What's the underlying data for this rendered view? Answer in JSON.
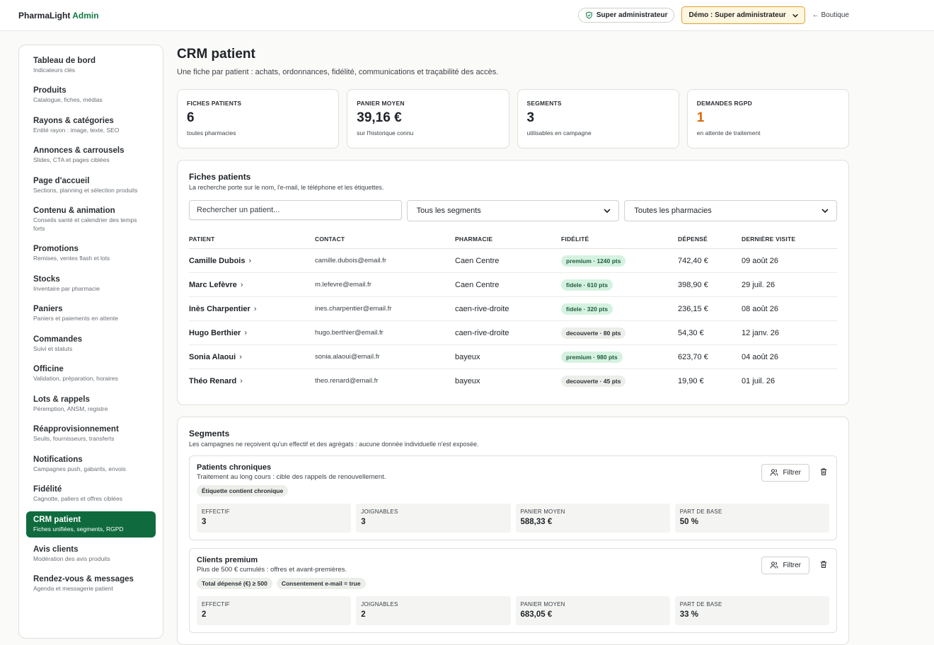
{
  "header": {
    "brand_main": "PharmaLight",
    "brand_accent": "Admin",
    "role_label": "Super administrateur",
    "demo_label": "Démo : Super administrateur",
    "shop_link": "← Boutique"
  },
  "sidebar": {
    "items": [
      {
        "title": "Tableau de bord",
        "sub": "Indicateurs clés"
      },
      {
        "title": "Produits",
        "sub": "Catalogue, fiches, médias"
      },
      {
        "title": "Rayons & catégories",
        "sub": "Entité rayon : image, texte, SEO"
      },
      {
        "title": "Annonces & carrousels",
        "sub": "Slides, CTA et pages ciblées"
      },
      {
        "title": "Page d'accueil",
        "sub": "Sections, planning et sélection produits"
      },
      {
        "title": "Contenu & animation",
        "sub": "Conseils santé et calendrier des temps forts"
      },
      {
        "title": "Promotions",
        "sub": "Remises, ventes flash et lots"
      },
      {
        "title": "Stocks",
        "sub": "Inventaire par pharmacie"
      },
      {
        "title": "Paniers",
        "sub": "Paniers et paiements en attente"
      },
      {
        "title": "Commandes",
        "sub": "Suivi et statuts"
      },
      {
        "title": "Officine",
        "sub": "Validation, préparation, horaires"
      },
      {
        "title": "Lots & rappels",
        "sub": "Péremption, ANSM, registre"
      },
      {
        "title": "Réapprovisionnement",
        "sub": "Seuils, fournisseurs, transferts"
      },
      {
        "title": "Notifications",
        "sub": "Campagnes push, gabarits, envois"
      },
      {
        "title": "Fidélité",
        "sub": "Cagnotte, paliers et offres ciblées"
      },
      {
        "title": "CRM patient",
        "sub": "Fiches unifiées, segments, RGPD"
      },
      {
        "title": "Avis clients",
        "sub": "Modération des avis produits"
      },
      {
        "title": "Rendez-vous & messages",
        "sub": "Agenda et messagerie patient"
      }
    ]
  },
  "page": {
    "title": "CRM patient",
    "subtitle": "Une fiche par patient : achats, ordonnances, fidélité, communications et traçabilité des accès."
  },
  "stats": [
    {
      "label": "FICHES PATIENTS",
      "value": "6",
      "caption": "toutes pharmacies"
    },
    {
      "label": "PANIER MOYEN",
      "value": "39,16 €",
      "caption": "sur l'historique connu"
    },
    {
      "label": "SEGMENTS",
      "value": "3",
      "caption": "utilisables en campagne"
    },
    {
      "label": "DEMANDES RGPD",
      "value": "1",
      "caption": "en attente de traitement"
    }
  ],
  "patients": {
    "title": "Fiches patients",
    "subtitle": "La recherche porte sur le nom, l'e-mail, le téléphone et les étiquettes.",
    "search_placeholder": "Rechercher un patient...",
    "segment_filter": "Tous les segments",
    "pharmacy_filter": "Toutes les pharmacies",
    "columns": [
      "PATIENT",
      "CONTACT",
      "PHARMACIE",
      "FIDÉLITÉ",
      "DÉPENSÉ",
      "DERNIÈRE VISITE"
    ],
    "rows": [
      {
        "name": "Camille Dubois",
        "email": "camille.dubois@email.fr",
        "pharmacy": "Caen Centre",
        "loyalty": "premium · 1240 pts",
        "spent": "742,40 €",
        "last": "09 août 26"
      },
      {
        "name": "Marc Lefèvre",
        "email": "m.lefevre@email.fr",
        "pharmacy": "Caen Centre",
        "loyalty": "fidele · 610 pts",
        "spent": "398,90 €",
        "last": "29 juil. 26"
      },
      {
        "name": "Inès Charpentier",
        "email": "ines.charpentier@email.fr",
        "pharmacy": "caen-rive-droite",
        "loyalty": "fidele · 320 pts",
        "spent": "236,15 €",
        "last": "08 août 26"
      },
      {
        "name": "Hugo Berthier",
        "email": "hugo.berthier@email.fr",
        "pharmacy": "caen-rive-droite",
        "loyalty": "decouverte · 80 pts",
        "spent": "54,30 €",
        "last": "12 janv. 26"
      },
      {
        "name": "Sonia Alaoui",
        "email": "sonia.alaoui@email.fr",
        "pharmacy": "bayeux",
        "loyalty": "premium · 980 pts",
        "spent": "623,70 €",
        "last": "04 août 26"
      },
      {
        "name": "Théo Renard",
        "email": "theo.renard@email.fr",
        "pharmacy": "bayeux",
        "loyalty": "decouverte · 45 pts",
        "spent": "19,90 €",
        "last": "01 juil. 26"
      }
    ]
  },
  "segments": {
    "title": "Segments",
    "subtitle": "Les campagnes ne reçoivent qu'un effectif et des agrégats : aucune donnée individuelle n'est exposée.",
    "filter_label": "Filtrer",
    "metric_labels": [
      "EFFECTIF",
      "JOIGNABLES",
      "PANIER MOYEN",
      "PART DE BASE"
    ],
    "items": [
      {
        "title": "Patients chroniques",
        "desc": "Traitement au long cours : cible des rappels de renouvellement.",
        "tags": [
          "Étiquette contient chronique"
        ],
        "metrics": [
          "3",
          "3",
          "588,33 €",
          "50 %"
        ]
      },
      {
        "title": "Clients premium",
        "desc": "Plus de 500 € cumulés : offres et avant-premières.",
        "tags": [
          "Total dépensé (€) ≥ 500",
          "Consentement e-mail = true"
        ],
        "metrics": [
          "2",
          "2",
          "683,05 €",
          "33 %"
        ]
      }
    ]
  },
  "colors": {
    "brand_green": "#0f7a45",
    "active_nav": "#0f6b3e",
    "warning": "#d96a0b",
    "demo_border": "#d9a233"
  }
}
